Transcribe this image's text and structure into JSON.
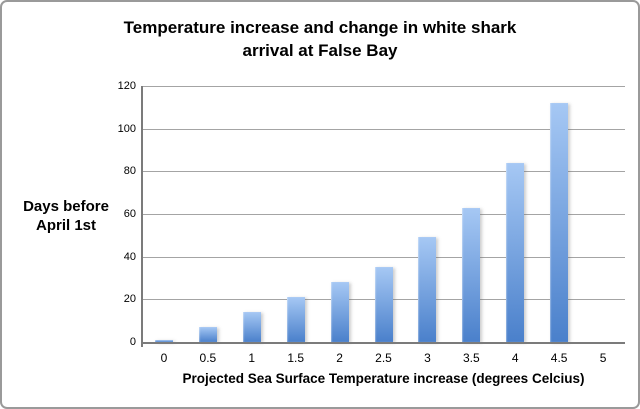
{
  "window": {
    "background": "#ffffff",
    "border_color": "#9a9a9a"
  },
  "chart_data": {
    "type": "bar",
    "title": "Temperature increase and change in white shark arrival at False Bay",
    "title_lines": [
      "Temperature increase and change in white shark",
      "arrival at False Bay"
    ],
    "xlabel": "Projected Sea Surface Temperature increase (degrees Celcius)",
    "ylabel": "Days before April 1st",
    "ylabel_lines": [
      "Days before",
      "April 1st"
    ],
    "categories": [
      "0",
      "0.5",
      "1",
      "1.5",
      "2",
      "2.5",
      "3",
      "3.5",
      "4",
      "4.5",
      "5"
    ],
    "values": [
      1,
      7,
      14,
      21,
      28,
      35,
      49,
      63,
      84,
      112,
      0
    ],
    "ylim": [
      0,
      120
    ],
    "yticks": [
      0,
      20,
      40,
      60,
      80,
      100,
      120
    ],
    "grid": true,
    "legend": false,
    "colors": {
      "bar_gradient_top": "#a6c8f4",
      "bar_gradient_bottom": "#4a80cb",
      "gridline": "#a4a4a4",
      "axis_line": "#7b7b7b",
      "text": "#000000"
    }
  }
}
